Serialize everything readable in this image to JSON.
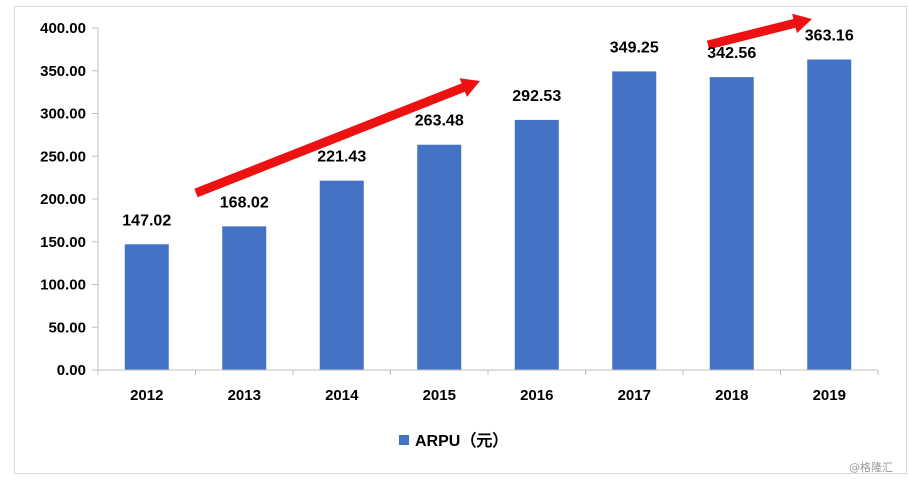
{
  "chart_data": {
    "type": "bar",
    "title": "",
    "xlabel": "",
    "ylabel": "",
    "categories": [
      "2012",
      "2013",
      "2014",
      "2015",
      "2016",
      "2017",
      "2018",
      "2019"
    ],
    "series": [
      {
        "name": "ARPU（元）",
        "values": [
          147.02,
          168.02,
          221.43,
          263.48,
          292.53,
          349.25,
          342.56,
          363.16
        ]
      }
    ],
    "data_labels": [
      "147.02",
      "168.02",
      "221.43",
      "263.48",
      "292.53",
      "349.25",
      "342.56",
      "363.16"
    ],
    "ylim": [
      0,
      400
    ],
    "yticks": [
      "0.00",
      "50.00",
      "100.00",
      "150.00",
      "200.00",
      "250.00",
      "300.00",
      "350.00",
      "400.00"
    ],
    "ytick_step": 50,
    "grid": false,
    "legend": "bottom-center",
    "annotations": [
      {
        "type": "trend-arrow",
        "from_category": "2013",
        "to_category": "2016",
        "color": "#ee1111"
      },
      {
        "type": "trend-arrow",
        "from_category": "2018",
        "to_category": "2019",
        "color": "#ee1111"
      }
    ]
  },
  "colors": {
    "bar": "#4472c4",
    "arrow": "#ee1111",
    "axis": "#bfbfbf"
  },
  "watermark": "@格隆汇"
}
